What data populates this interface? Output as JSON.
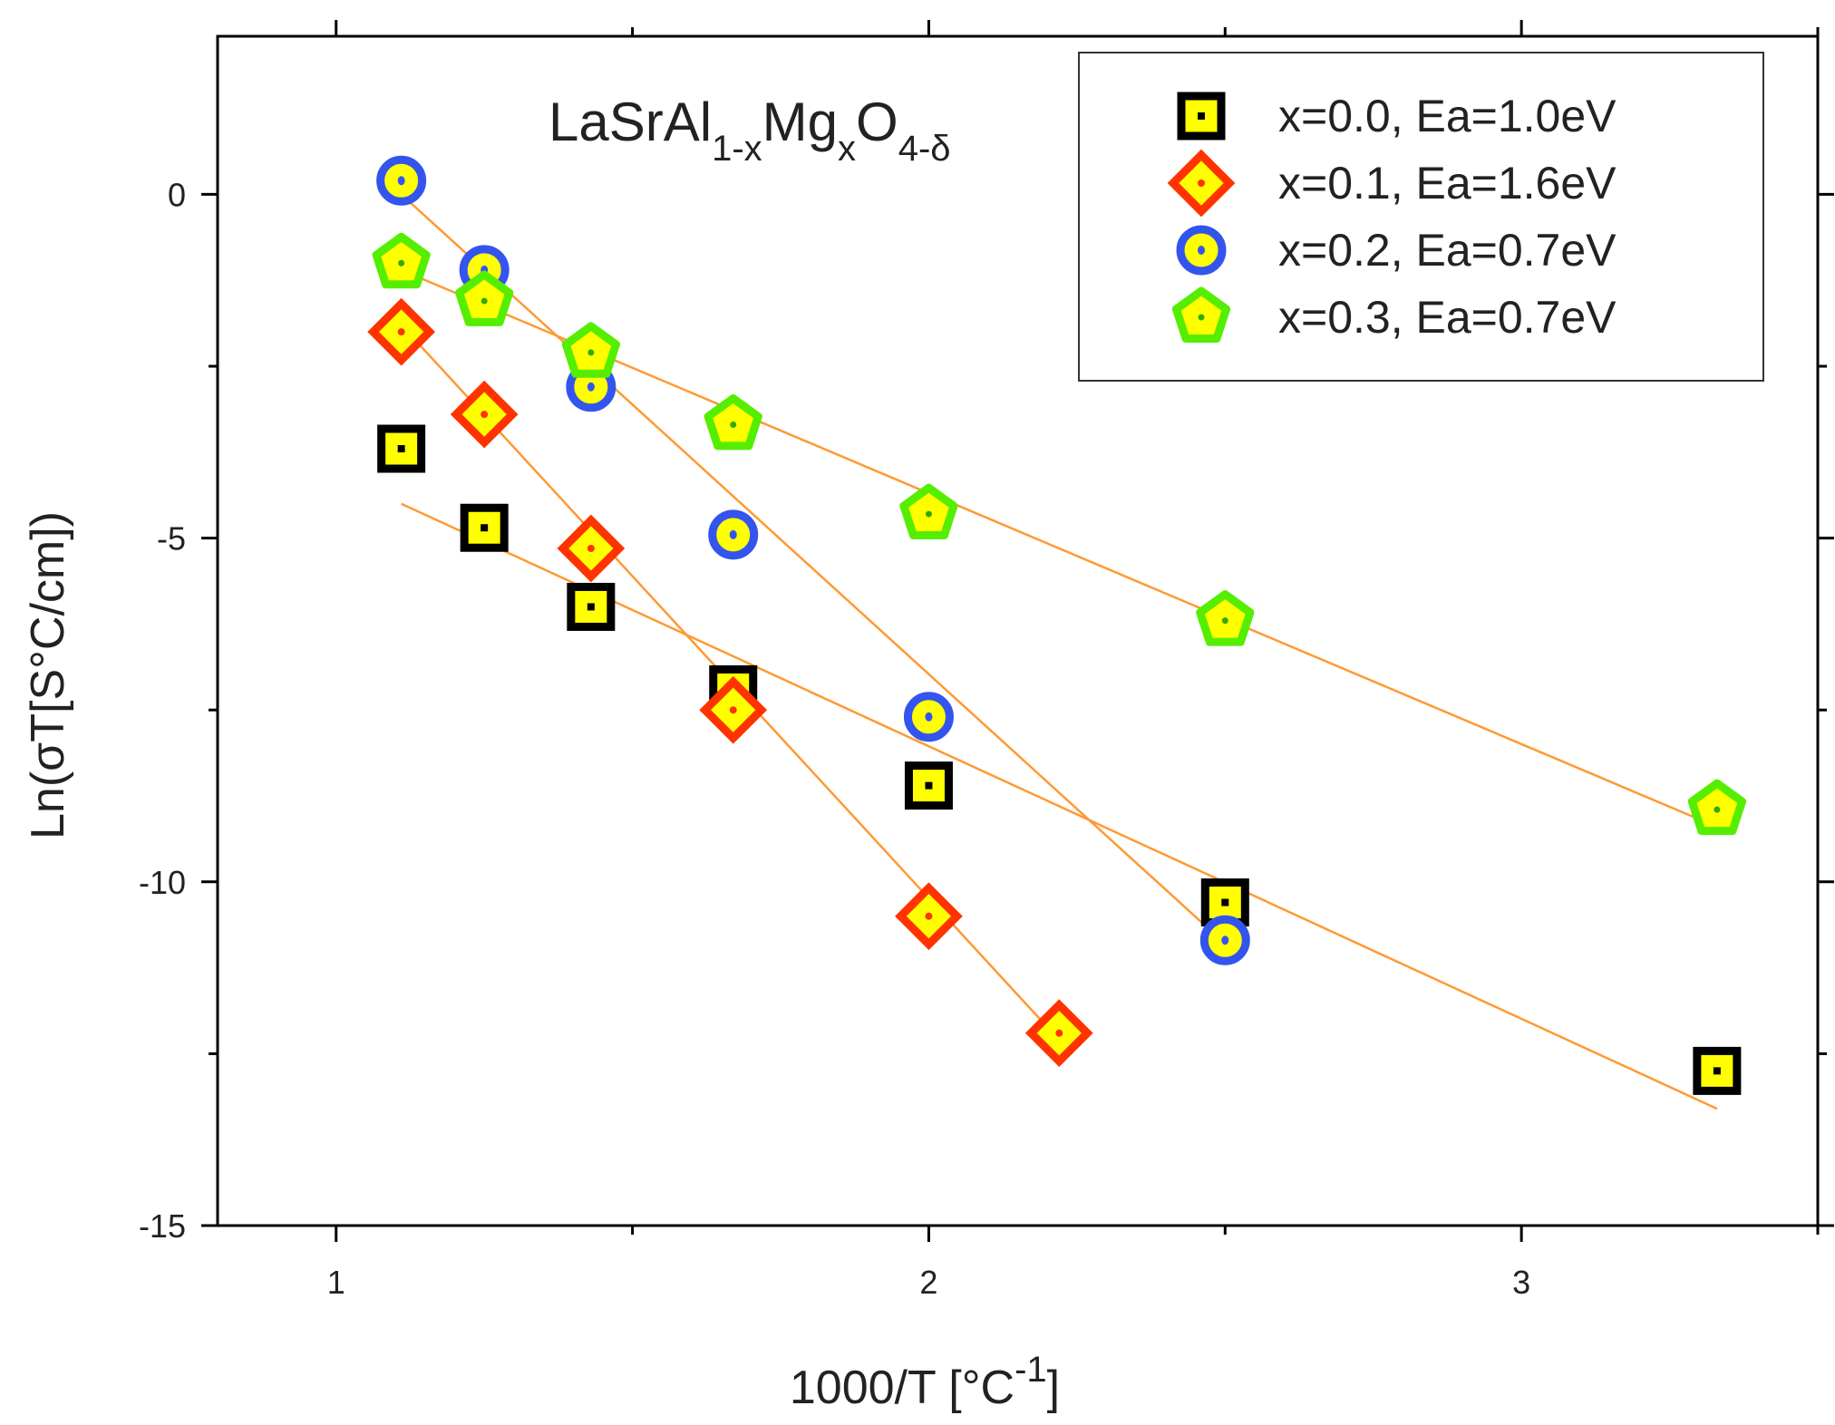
{
  "chart_data": {
    "type": "scatter",
    "title": "",
    "annotation": {
      "base": "LaSrAl",
      "sub1": "1-x",
      "mid": "Mg",
      "sub2": "x",
      "tail": "O",
      "sub3": "4-δ"
    },
    "xlabel": {
      "main": "1000/T [°C",
      "sup": "-1",
      "close": "]"
    },
    "ylabel": "Ln(σT[S°C/cm])",
    "xlim": [
      0.8,
      3.5
    ],
    "ylim": [
      -15,
      2.3
    ],
    "xticks": [
      1,
      2,
      3
    ],
    "xtick_labels": [
      "1",
      "2",
      "3"
    ],
    "yticks": [
      0,
      -5,
      -10,
      -15
    ],
    "ytick_labels": [
      "0",
      "-5",
      "-10",
      "-15"
    ],
    "legend_position": "top-right",
    "fit_line_color": "#ff9933",
    "series": [
      {
        "name": "x=0.0, Ea=1.0eV",
        "marker": "square",
        "outline_color": "#000000",
        "fill_color": "#ffff00",
        "x": [
          1.11,
          1.25,
          1.43,
          1.67,
          2.0,
          2.5,
          3.33
        ],
        "y": [
          -3.7,
          -4.85,
          -6.0,
          -7.2,
          -8.6,
          -10.3,
          -12.75
        ],
        "fit": {
          "x": [
            1.11,
            3.33
          ],
          "y": [
            -4.5,
            -13.3
          ]
        }
      },
      {
        "name": "x=0.1, Ea=1.6eV",
        "marker": "diamond",
        "outline_color": "#ff3300",
        "fill_color": "#ffff00",
        "x": [
          1.11,
          1.25,
          1.43,
          1.67,
          2.0,
          2.22
        ],
        "y": [
          -2.0,
          -3.2,
          -5.15,
          -7.5,
          -10.5,
          -12.2
        ],
        "fit": {
          "x": [
            1.11,
            2.22
          ],
          "y": [
            -1.9,
            -12.3
          ]
        }
      },
      {
        "name": "x=0.2, Ea=0.7eV",
        "marker": "circle",
        "outline_color": "#3355ee",
        "fill_color": "#ffff00",
        "x": [
          1.11,
          1.25,
          1.43,
          1.67,
          2.0,
          2.5
        ],
        "y": [
          0.2,
          -1.1,
          -2.8,
          -4.95,
          -7.6,
          -10.85
        ],
        "fit": {
          "x": [
            1.11,
            2.5
          ],
          "y": [
            0.0,
            -10.9
          ]
        }
      },
      {
        "name": "x=0.3, Ea=0.7eV",
        "marker": "pentagon",
        "outline_color": "#55ee00",
        "fill_color": "#ffff00",
        "x": [
          1.11,
          1.25,
          1.43,
          1.67,
          2.0,
          2.5,
          3.33
        ],
        "y": [
          -1.0,
          -1.55,
          -2.3,
          -3.35,
          -4.65,
          -6.2,
          -8.95
        ],
        "fit": {
          "x": [
            1.11,
            3.33
          ],
          "y": [
            -1.1,
            -9.2
          ]
        }
      }
    ]
  }
}
